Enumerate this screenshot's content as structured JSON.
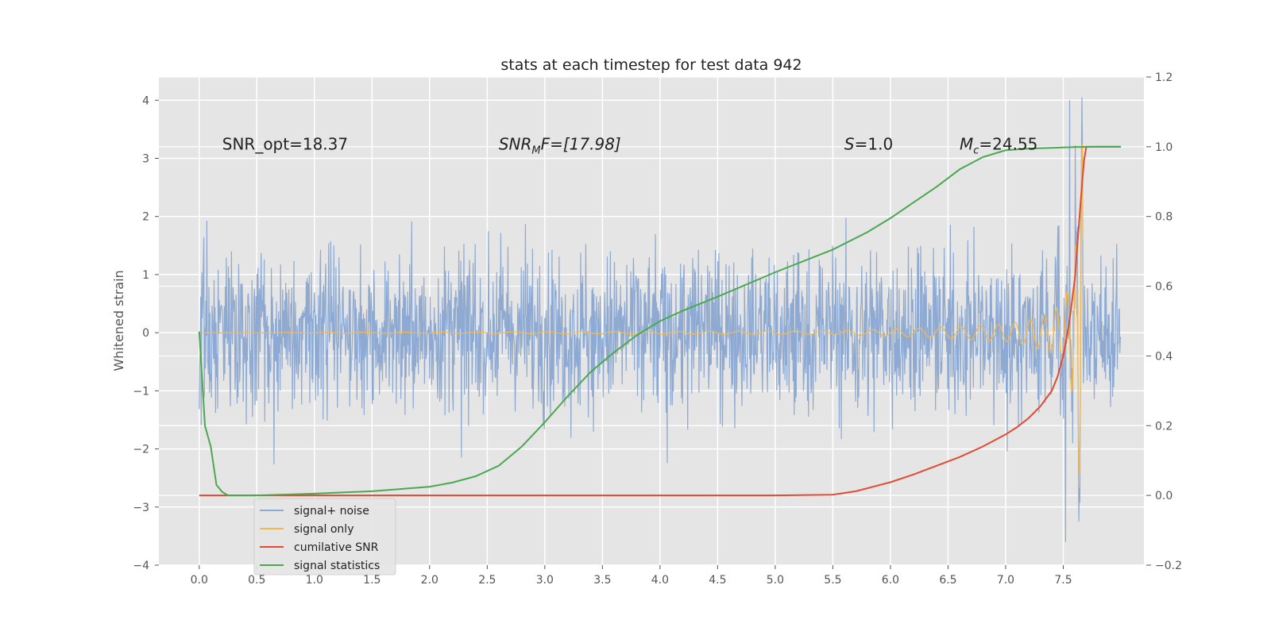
{
  "chart_data": {
    "type": "line",
    "title": "stats at each timestep for test data 942",
    "ylabel": "Whitened strain",
    "xlim": [
      -0.35,
      8.2
    ],
    "ylim": [
      -4,
      4.4
    ],
    "y2lim": [
      -0.2,
      1.2
    ],
    "grid": true,
    "x_ticks": [
      "0.0",
      "0.5",
      "1.0",
      "1.5",
      "2.0",
      "2.5",
      "3.0",
      "3.5",
      "4.0",
      "4.5",
      "5.0",
      "5.5",
      "6.0",
      "6.5",
      "7.0",
      "7.5"
    ],
    "y_ticks": [
      "−4",
      "−3",
      "−2",
      "−1",
      "0",
      "1",
      "2",
      "3",
      "4"
    ],
    "y2_ticks": [
      "−0.2",
      "0.0",
      "0.2",
      "0.4",
      "0.6",
      "0.8",
      "1.0",
      "1.2"
    ],
    "annotations": [
      {
        "id": "snr_opt",
        "text": "SNR_opt=18.37",
        "x": 0.2,
        "y": 3.15
      },
      {
        "id": "snr_mf",
        "text": "SNR",
        "sub": "M",
        "suffix": "F=[17.98]",
        "x": 2.6,
        "y": 3.15
      },
      {
        "id": "s",
        "text": "S",
        "suffix": "=1.0",
        "x": 5.6,
        "y": 3.15
      },
      {
        "id": "mc",
        "text": "M",
        "sub": "c",
        "suffix": "=24.55",
        "x": 6.6,
        "y": 3.15
      }
    ],
    "legend": {
      "placement": "lower-left",
      "entries": [
        {
          "label": "signal+ noise",
          "color": "#8eaad2"
        },
        {
          "label": "signal only",
          "color": "#f2b84f"
        },
        {
          "label": "cumilative SNR",
          "color": "#e24a33"
        },
        {
          "label": "signal statistics",
          "color": "#4aa84f"
        }
      ]
    },
    "series": [
      {
        "name": "signal+ noise",
        "axis": "left",
        "color": "#8eaad2",
        "x_range": [
          0.0,
          8.0
        ],
        "typical_amplitude": 1.5,
        "max": 4.0,
        "min": -3.6
      },
      {
        "name": "signal only",
        "axis": "left",
        "color": "#f2b84f",
        "x_range": [
          0.0,
          7.67
        ],
        "envelope": {
          "x": [
            0.0,
            5.5,
            6.0,
            6.5,
            7.0,
            7.2,
            7.4,
            7.5,
            7.55,
            7.6,
            7.63,
            7.65,
            7.67
          ],
          "amp": [
            0.0,
            0.03,
            0.06,
            0.1,
            0.15,
            0.22,
            0.35,
            0.55,
            0.8,
            1.3,
            2.0,
            3.2,
            3.4
          ]
        }
      },
      {
        "name": "cumilative SNR",
        "axis": "right",
        "color": "#e24a33",
        "x": [
          0.0,
          1.0,
          2.0,
          3.0,
          4.0,
          5.0,
          5.5,
          5.7,
          5.85,
          6.0,
          6.2,
          6.4,
          6.6,
          6.8,
          7.0,
          7.1,
          7.2,
          7.3,
          7.4,
          7.45,
          7.5,
          7.55,
          7.6,
          7.63,
          7.66,
          7.68,
          7.7,
          8.0
        ],
        "values": [
          0.0,
          0.0,
          0.0,
          0.0,
          0.0,
          0.0,
          0.002,
          0.012,
          0.025,
          0.038,
          0.06,
          0.085,
          0.11,
          0.14,
          0.175,
          0.196,
          0.222,
          0.255,
          0.3,
          0.34,
          0.4,
          0.49,
          0.62,
          0.75,
          0.88,
          0.96,
          1.0,
          1.0
        ]
      },
      {
        "name": "signal statistics",
        "axis": "right",
        "color": "#4aa84f",
        "x": [
          0.0,
          0.05,
          0.1,
          0.15,
          0.2,
          0.25,
          0.3,
          0.5,
          1.0,
          1.5,
          2.0,
          2.2,
          2.4,
          2.6,
          2.8,
          3.0,
          3.2,
          3.4,
          3.6,
          3.8,
          4.0,
          4.2,
          4.5,
          5.0,
          5.5,
          5.8,
          6.0,
          6.2,
          6.4,
          6.6,
          6.8,
          7.0,
          7.2,
          7.4,
          7.6,
          7.8,
          8.0
        ],
        "values": [
          0.47,
          0.2,
          0.14,
          0.03,
          0.01,
          0.0,
          0.0,
          0.0,
          0.005,
          0.012,
          0.025,
          0.037,
          0.055,
          0.085,
          0.14,
          0.21,
          0.285,
          0.355,
          0.41,
          0.46,
          0.5,
          0.53,
          0.57,
          0.64,
          0.705,
          0.755,
          0.795,
          0.84,
          0.885,
          0.935,
          0.97,
          0.99,
          0.995,
          0.997,
          0.999,
          1.0,
          1.0
        ]
      }
    ]
  }
}
